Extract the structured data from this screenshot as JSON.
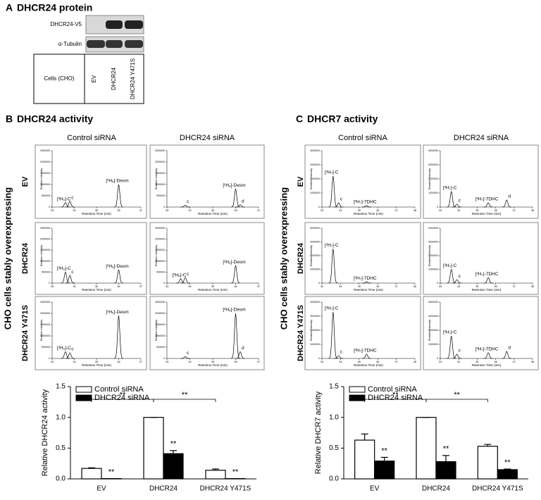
{
  "panel_a": {
    "letter": "A",
    "title": "DHCR24 protein",
    "blot_labels": [
      "DHCR24-V5",
      "α-Tubulin"
    ],
    "row_header": "Cells (CHO)",
    "columns": [
      "EV",
      "DHCR24",
      "DHCR24 Y471S"
    ]
  },
  "side_label": "CHO cells stably overexpressing",
  "panel_b": {
    "letter": "B",
    "title": "DHCR24 activity",
    "column_headers": [
      "Control siRNA",
      "DHCR24 siRNA"
    ],
    "row_labels": [
      "EV",
      "DHCR24",
      "DHCR24 Y471S"
    ],
    "chromatogram_axes": {
      "xlabel": "Retention Time (min)",
      "ylabel": "Relative Intensity",
      "xlim": [
        33,
        37
      ],
      "xticks": [
        33,
        34,
        35,
        36,
        37
      ],
      "ylim": [
        0,
        2500000
      ],
      "yticks": [
        0,
        500000,
        1000000,
        1500000,
        2000000,
        2500000
      ]
    },
    "traces": [
      {
        "peaks": [
          {
            "x": 33.6,
            "height": 200000,
            "label": "[²H₆]-C"
          },
          {
            "x": 33.8,
            "height": 250000,
            "label": "c"
          },
          {
            "x": 36.0,
            "height": 1000000,
            "label": "[²H₆]-Desm"
          }
        ]
      },
      {
        "peaks": [
          {
            "x": 33.8,
            "height": 80000,
            "label": "c"
          },
          {
            "x": 36.0,
            "height": 800000,
            "label": "[²H₆]-Desm"
          },
          {
            "x": 36.2,
            "height": 100000,
            "label": "d"
          }
        ]
      },
      {
        "peaks": [
          {
            "x": 33.6,
            "height": 500000,
            "label": "[²H₆]-C"
          },
          {
            "x": 33.8,
            "height": 350000,
            "label": "c"
          },
          {
            "x": 36.0,
            "height": 600000,
            "label": "[²H₆]-Desm"
          }
        ]
      },
      {
        "peaks": [
          {
            "x": 33.6,
            "height": 200000,
            "label": "[²H₆]-C"
          },
          {
            "x": 33.8,
            "height": 250000,
            "label": "c"
          },
          {
            "x": 36.0,
            "height": 800000,
            "label": "[²H₆]-Desm"
          }
        ]
      },
      {
        "peaks": [
          {
            "x": 33.6,
            "height": 300000,
            "label": "[²H₆]-C"
          },
          {
            "x": 33.8,
            "height": 250000,
            "label": "c"
          },
          {
            "x": 36.0,
            "height": 1900000,
            "label": "[²H₆]-Desm"
          }
        ]
      },
      {
        "peaks": [
          {
            "x": 33.8,
            "height": 80000,
            "label": "c"
          },
          {
            "x": 36.0,
            "height": 2000000,
            "label": "[²H₆]-Desm"
          },
          {
            "x": 36.2,
            "height": 300000,
            "label": "d"
          }
        ]
      }
    ]
  },
  "panel_c": {
    "letter": "C",
    "title": "DHCR7 activity",
    "column_headers": [
      "Control siRNA",
      "DHCR24 siRNA"
    ],
    "row_labels": [
      "EV",
      "DHCR24",
      "DHCR24 Y471S"
    ],
    "chromatogram_axes": {
      "xlabel": "Retention Time (min)",
      "ylabel": "Relative Intensity",
      "xlim": [
        33,
        38
      ],
      "xticks": [
        33,
        34,
        35,
        36,
        37,
        38
      ],
      "ylim": [
        0,
        4000000
      ],
      "yticks": [
        0,
        1000000,
        2000000,
        3000000,
        4000000
      ]
    },
    "traces": [
      {
        "peaks": [
          {
            "x": 33.6,
            "height": 2200000,
            "label": "[²H₇]-C"
          },
          {
            "x": 33.9,
            "height": 300000,
            "label": "c"
          },
          {
            "x": 35.4,
            "height": 100000,
            "label": "[²H₇]-7DHC"
          }
        ]
      },
      {
        "peaks": [
          {
            "x": 33.6,
            "height": 1100000,
            "label": "[²H₇]-C"
          },
          {
            "x": 33.9,
            "height": 200000,
            "label": "c"
          },
          {
            "x": 35.6,
            "height": 300000,
            "label": "[²H₇]-7DHC"
          },
          {
            "x": 36.6,
            "height": 500000,
            "label": "d"
          }
        ]
      },
      {
        "peaks": [
          {
            "x": 33.6,
            "height": 2500000,
            "label": "[²H₇]-C"
          },
          {
            "x": 35.4,
            "height": 100000,
            "label": "[²H₇]-7DHC"
          }
        ]
      },
      {
        "peaks": [
          {
            "x": 33.6,
            "height": 1000000,
            "label": "[²H₇]-C"
          },
          {
            "x": 33.9,
            "height": 250000,
            "label": "c"
          },
          {
            "x": 35.6,
            "height": 400000,
            "label": "[²H₇]-7DHC"
          }
        ]
      },
      {
        "peaks": [
          {
            "x": 33.6,
            "height": 3300000,
            "label": "[²H₇]-C"
          },
          {
            "x": 33.9,
            "height": 200000,
            "label": "c"
          },
          {
            "x": 35.4,
            "height": 300000,
            "label": "[²H₇]-7DHC"
          }
        ]
      },
      {
        "peaks": [
          {
            "x": 33.6,
            "height": 1600000,
            "label": "[²H₇]-C"
          },
          {
            "x": 33.9,
            "height": 300000,
            "label": "c"
          },
          {
            "x": 35.6,
            "height": 400000,
            "label": "[²H₇]-7DHC"
          },
          {
            "x": 36.6,
            "height": 500000,
            "label": "d"
          }
        ]
      }
    ]
  },
  "chart_data": [
    {
      "type": "bar",
      "ylabel": "Relative DHCR24 activity",
      "categories": [
        "EV",
        "DHCR24",
        "DHCR24 Y471S"
      ],
      "ylim": [
        0,
        1.5
      ],
      "yticks": [
        {
          "value": 0,
          "label": "0.0"
        },
        {
          "value": 0.5,
          "label": "0.5"
        },
        {
          "value": 1,
          "label": "1.0"
        },
        {
          "value": 1.5,
          "label": "1.5"
        }
      ],
      "series": [
        {
          "name": "Control siRNA",
          "color": "#ffffff",
          "values": [
            0.17,
            1.0,
            0.14
          ],
          "errors": [
            0.01,
            0,
            0.02
          ]
        },
        {
          "name": "DHCR24 siRNA",
          "color": "#000000",
          "values": [
            0.005,
            0.41,
            0.005
          ],
          "errors": [
            0,
            0.05,
            0
          ],
          "significance": [
            "**",
            "**",
            "**"
          ]
        }
      ],
      "brackets": [
        {
          "from": 0,
          "to": 1,
          "label": "**"
        },
        {
          "from": 1,
          "to": 2,
          "label": "**"
        }
      ]
    },
    {
      "type": "bar",
      "ylabel": "Relative DHCR7 activity",
      "categories": [
        "EV",
        "DHCR24",
        "DHCR24 Y471S"
      ],
      "ylim": [
        0,
        1.5
      ],
      "yticks": [
        {
          "value": 0,
          "label": "0.0"
        },
        {
          "value": 0.5,
          "label": "0.5"
        },
        {
          "value": 1,
          "label": "1.0"
        },
        {
          "value": 1.5,
          "label": "1.5"
        }
      ],
      "series": [
        {
          "name": "Control siRNA",
          "color": "#ffffff",
          "values": [
            0.63,
            1.0,
            0.53
          ],
          "errors": [
            0.1,
            0,
            0.03
          ]
        },
        {
          "name": "DHCR24 siRNA",
          "color": "#000000",
          "values": [
            0.29,
            0.28,
            0.15
          ],
          "errors": [
            0.06,
            0.1,
            0.01
          ],
          "significance": [
            "**",
            "**",
            "**"
          ]
        }
      ],
      "brackets": [
        {
          "from": 0,
          "to": 1,
          "label": "**"
        },
        {
          "from": 1,
          "to": 2,
          "label": "**"
        }
      ]
    }
  ]
}
